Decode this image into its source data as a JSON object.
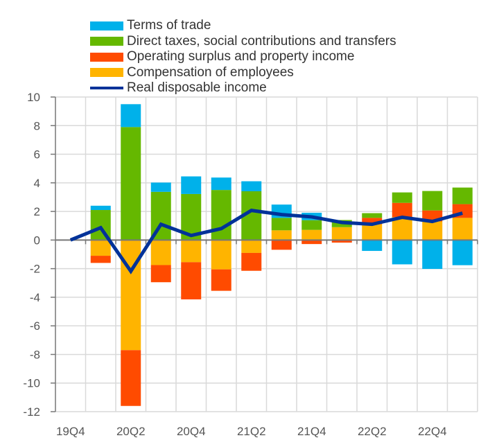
{
  "chart_data": {
    "type": "bar",
    "stacked": true,
    "categories": [
      "19Q4",
      "20Q1",
      "20Q2",
      "20Q3",
      "20Q4",
      "21Q1",
      "21Q2",
      "21Q3",
      "21Q4",
      "22Q1",
      "22Q2",
      "22Q3",
      "22Q4",
      "23Q1"
    ],
    "x_tick_labels": [
      "19Q4",
      "20Q2",
      "20Q4",
      "21Q2",
      "21Q4",
      "22Q2",
      "22Q4"
    ],
    "ylim": [
      -12,
      10
    ],
    "y_ticks": [
      10,
      8,
      6,
      4,
      2,
      0,
      -2,
      -4,
      -6,
      -8,
      -10,
      -12
    ],
    "grid": true,
    "legend_position": "top",
    "series": [
      {
        "name": "Compensation of employees",
        "color": "#FFB400",
        "type": "bar",
        "values": [
          0,
          -1.1,
          -7.7,
          -1.75,
          -1.55,
          -2.05,
          -0.9,
          0.68,
          0.71,
          0.9,
          1.1,
          1.6,
          1.3,
          1.55
        ]
      },
      {
        "name": "Operating surplus and property income",
        "color": "#FF4B00",
        "type": "bar",
        "values": [
          0,
          -0.5,
          -3.9,
          -1.2,
          -2.6,
          -1.5,
          -1.25,
          -0.68,
          -0.28,
          -0.18,
          0.45,
          1.0,
          0.77,
          0.96
        ]
      },
      {
        "name": "Direct taxes, social contributions and transfers",
        "color": "#65B800",
        "type": "bar",
        "values": [
          0,
          2.1,
          7.9,
          3.37,
          3.22,
          3.5,
          3.41,
          0.87,
          0.68,
          0.5,
          0.33,
          0.73,
          1.36,
          1.16
        ]
      },
      {
        "name": "Terms of trade",
        "color": "#00B1EA",
        "type": "bar",
        "values": [
          0,
          0.3,
          1.6,
          0.65,
          1.23,
          0.87,
          0.7,
          0.93,
          0.52,
          0,
          -0.76,
          -1.7,
          -2.02,
          -1.76
        ]
      },
      {
        "name": "Real disposable income",
        "color": "#003299",
        "type": "line",
        "values": [
          0,
          0.86,
          -2.18,
          1.1,
          0.32,
          0.8,
          2.07,
          1.78,
          1.62,
          1.23,
          1.1,
          1.59,
          1.3,
          1.88
        ]
      }
    ],
    "legend_order": [
      "Terms of trade",
      "Direct taxes, social contributions and transfers",
      "Operating surplus and property income",
      "Compensation of employees",
      "Real disposable income"
    ]
  }
}
